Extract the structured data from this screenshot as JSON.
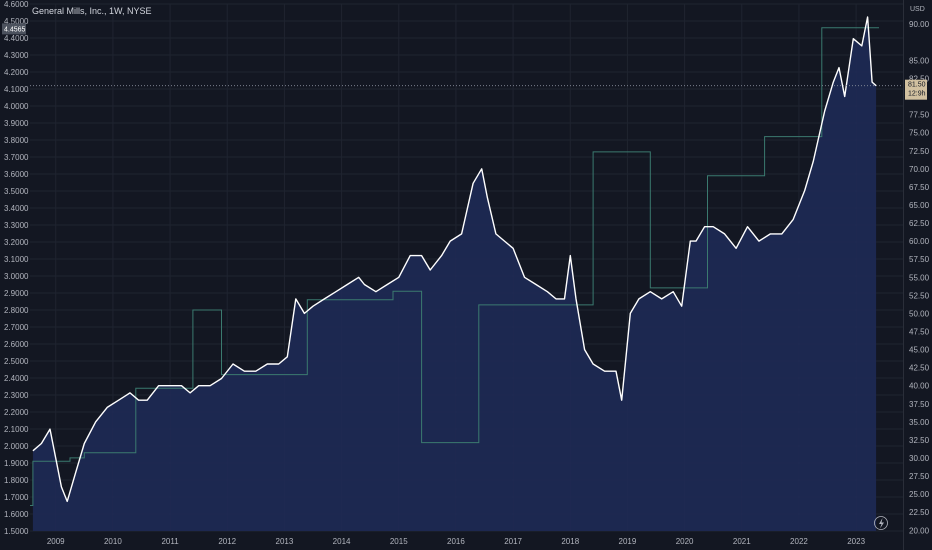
{
  "header": {
    "title": "General Mills, Inc., 1W, NYSE"
  },
  "chart_data": {
    "type": "area",
    "title": "General Mills, Inc., 1W, NYSE",
    "left_axis": {
      "ticks": [
        "4.6000",
        "4.5000",
        "4.4000",
        "4.3000",
        "4.2000",
        "4.1000",
        "4.0000",
        "3.9000",
        "3.8000",
        "3.7000",
        "3.6000",
        "3.5000",
        "3.4000",
        "3.3000",
        "3.2000",
        "3.1000",
        "3.0000",
        "2.9000",
        "2.8000",
        "2.7000",
        "2.6000",
        "2.5000",
        "2.4000",
        "2.3000",
        "2.2000",
        "2.1000",
        "2.0000",
        "1.9000",
        "1.8000",
        "1.7000",
        "1.6000",
        "1.5000"
      ],
      "range": [
        1.5,
        4.6
      ],
      "current_label": "4.4565"
    },
    "right_axis": {
      "unit": "USD",
      "ticks": [
        "90.00",
        "85.00",
        "82.50",
        "77.50",
        "75.00",
        "72.50",
        "70.00",
        "67.50",
        "65.00",
        "62.50",
        "60.00",
        "57.50",
        "55.00",
        "52.50",
        "50.00",
        "47.50",
        "45.00",
        "42.50",
        "40.00",
        "37.50",
        "35.00",
        "32.50",
        "30.00",
        "27.50",
        "25.00",
        "22.50",
        "20.00"
      ],
      "range": [
        19.9,
        92.8
      ],
      "current_price": "81.50",
      "countdown": "12:9h"
    },
    "x_axis": {
      "ticks": [
        "2009",
        "2010",
        "2011",
        "2012",
        "2013",
        "2014",
        "2015",
        "2016",
        "2017",
        "2018",
        "2019",
        "2020",
        "2021",
        "2022",
        "2023"
      ],
      "range": [
        2008.55,
        2023.82
      ]
    },
    "series": [
      {
        "name": "",
        "color": "#ffffff",
        "fill": "#1e2a55",
        "x": [
          2008.6,
          2008.75,
          2008.9,
          2009.0,
          2009.1,
          2009.2,
          2009.35,
          2009.5,
          2009.7,
          2009.9,
          2010.1,
          2010.3,
          2010.45,
          2010.6,
          2010.8,
          2011.0,
          2011.2,
          2011.35,
          2011.5,
          2011.7,
          2011.9,
          2012.1,
          2012.3,
          2012.5,
          2012.7,
          2012.9,
          2013.05,
          2013.2,
          2013.35,
          2013.5,
          2013.7,
          2013.9,
          2014.1,
          2014.3,
          2014.4,
          2014.6,
          2014.8,
          2015.0,
          2015.2,
          2015.4,
          2015.55,
          2015.75,
          2015.9,
          2016.1,
          2016.3,
          2016.45,
          2016.55,
          2016.7,
          2016.85,
          2017.0,
          2017.2,
          2017.4,
          2017.6,
          2017.75,
          2017.9,
          2018.0,
          2018.1,
          2018.25,
          2018.4,
          2018.6,
          2018.8,
          2018.9,
          2019.05,
          2019.2,
          2019.4,
          2019.6,
          2019.8,
          2019.95,
          2020.1,
          2020.2,
          2020.35,
          2020.5,
          2020.7,
          2020.9,
          2021.1,
          2021.3,
          2021.5,
          2021.7,
          2021.9,
          2022.1,
          2022.25,
          2022.45,
          2022.6,
          2022.7,
          2022.8,
          2022.95,
          2023.1,
          2023.2,
          2023.28,
          2023.35
        ],
        "y": [
          31,
          32,
          34,
          30,
          26,
          24,
          28,
          32,
          35,
          37,
          38,
          39,
          38,
          38,
          40,
          40,
          40,
          39,
          40,
          40,
          41,
          43,
          42,
          42,
          43,
          43,
          44,
          52,
          50,
          51,
          52,
          53,
          54,
          55,
          54,
          53,
          54,
          55,
          58,
          58,
          56,
          58,
          60,
          61,
          68,
          70,
          66,
          61,
          60,
          59,
          55,
          54,
          53,
          52,
          52,
          58,
          52,
          45,
          43,
          42,
          42,
          38,
          50,
          52,
          53,
          52,
          53,
          51,
          60,
          60,
          62,
          62,
          61,
          59,
          62,
          60,
          61,
          61,
          63,
          67,
          71,
          78,
          82,
          84,
          80,
          88,
          87,
          91,
          82,
          81.5
        ]
      }
    ],
    "step_series": {
      "name": "",
      "color": "#3b7a6f",
      "x": [
        2008.55,
        2008.6,
        2008.6,
        2009.25,
        2009.25,
        2009.5,
        2009.5,
        2010.4,
        2010.4,
        2011.4,
        2011.4,
        2011.9,
        2011.9,
        2012.4,
        2012.4,
        2012.9,
        2012.9,
        2013.4,
        2013.4,
        2013.9,
        2013.9,
        2014.9,
        2014.9,
        2015.4,
        2015.4,
        2015.9,
        2015.9,
        2016.4,
        2016.4,
        2017.4,
        2017.4,
        2017.9,
        2017.9,
        2018.4,
        2018.4,
        2018.9,
        2018.9,
        2019.4,
        2019.4,
        2019.9,
        2019.9,
        2020.4,
        2020.4,
        2020.9,
        2020.9,
        2021.4,
        2021.4,
        2021.9,
        2021.9,
        2022.4,
        2022.4,
        2022.9,
        2022.9,
        2023.4,
        2023.4
      ],
      "y": [
        1.65,
        1.65,
        1.91,
        1.91,
        1.93,
        1.93,
        1.96,
        1.96,
        2.34,
        2.34,
        2.8,
        2.8,
        2.42,
        2.42,
        2.42,
        2.42,
        2.42,
        2.42,
        2.86,
        2.86,
        2.86,
        2.86,
        2.91,
        2.91,
        2.02,
        2.02,
        2.02,
        2.02,
        2.83,
        2.83,
        2.83,
        2.83,
        2.83,
        2.83,
        3.73,
        3.73,
        3.73,
        3.73,
        2.93,
        2.93,
        2.93,
        2.93,
        3.59,
        3.59,
        3.59,
        3.59,
        3.82,
        3.82,
        3.82,
        3.82,
        4.46,
        4.46,
        4.46,
        4.46,
        4.46
      ]
    },
    "grid": true,
    "legend": "none"
  }
}
